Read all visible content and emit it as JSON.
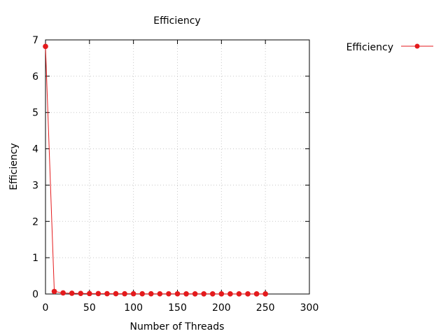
{
  "chart_data": {
    "type": "line",
    "title": "Efficiency",
    "xlabel": "Number of Threads",
    "ylabel": "Efficiency",
    "xlim": [
      0,
      300
    ],
    "ylim": [
      0,
      7
    ],
    "xticks": [
      0,
      50,
      100,
      150,
      200,
      250,
      300
    ],
    "yticks": [
      0,
      1,
      2,
      3,
      4,
      5,
      6,
      7
    ],
    "grid": true,
    "legend_position": "top-right outside",
    "series": [
      {
        "name": "Efficiency",
        "color": "#e41a1c",
        "x": [
          0,
          10,
          20,
          30,
          40,
          50,
          60,
          70,
          80,
          90,
          100,
          110,
          120,
          130,
          140,
          150,
          160,
          170,
          180,
          190,
          200,
          210,
          220,
          230,
          240,
          250
        ],
        "y": [
          6.82,
          0.07,
          0.03,
          0.02,
          0.015,
          0.012,
          0.01,
          0.009,
          0.008,
          0.007,
          0.007,
          0.006,
          0.006,
          0.005,
          0.005,
          0.005,
          0.004,
          0.004,
          0.004,
          0.004,
          0.003,
          0.003,
          0.003,
          0.003,
          0.003,
          0.003
        ]
      }
    ]
  }
}
